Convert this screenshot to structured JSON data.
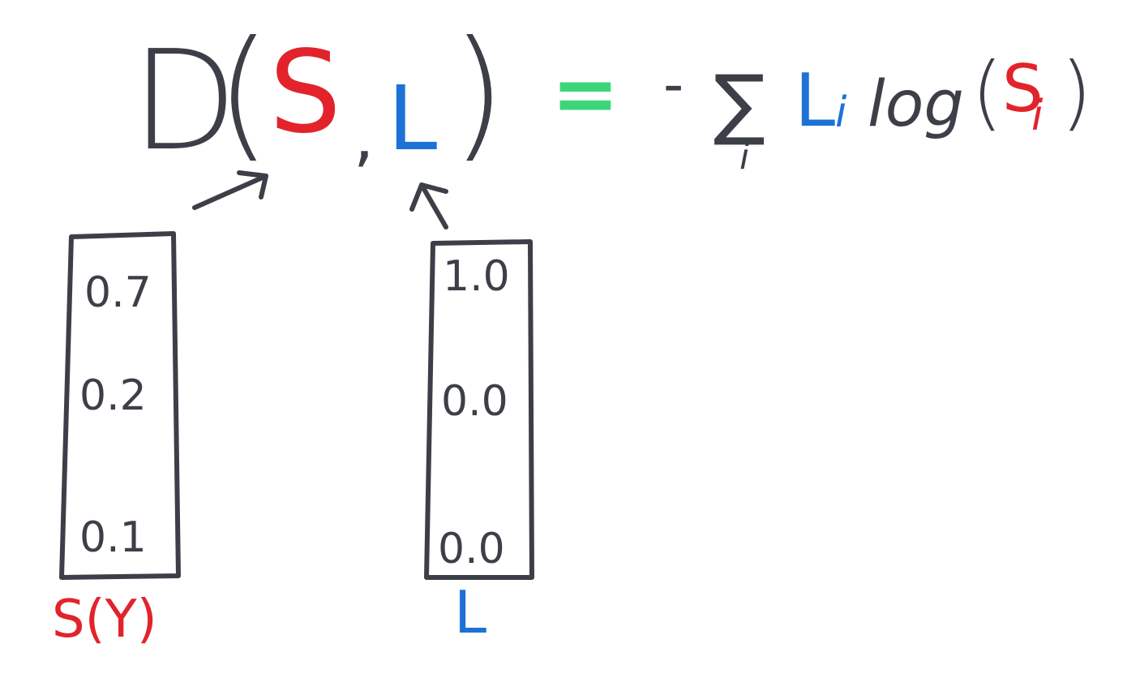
{
  "colors": {
    "ink": "#3d3f48",
    "red": "#e2232b",
    "blue": "#1d72d6",
    "green": "#3cd67a",
    "background": "#ffffff"
  },
  "formula": {
    "function_name": "D",
    "open_paren": "(",
    "arg_s": "S",
    "comma": ",",
    "arg_l": "L",
    "close_paren": ")",
    "equals": "=",
    "minus": "-",
    "sum_symbol": "∑",
    "sum_index": "i",
    "term_l": "L",
    "term_l_subscript": "i",
    "log_word": "log",
    "log_open_paren": "(",
    "term_s": "S",
    "term_s_subscript": "i",
    "log_close_paren": ")"
  },
  "vectors": {
    "s": {
      "label": "S(Y)",
      "values": [
        "0.7",
        "0.2",
        "0.1"
      ]
    },
    "l": {
      "label": "L",
      "values": [
        "1.0",
        "0.0",
        "0.0"
      ]
    }
  }
}
